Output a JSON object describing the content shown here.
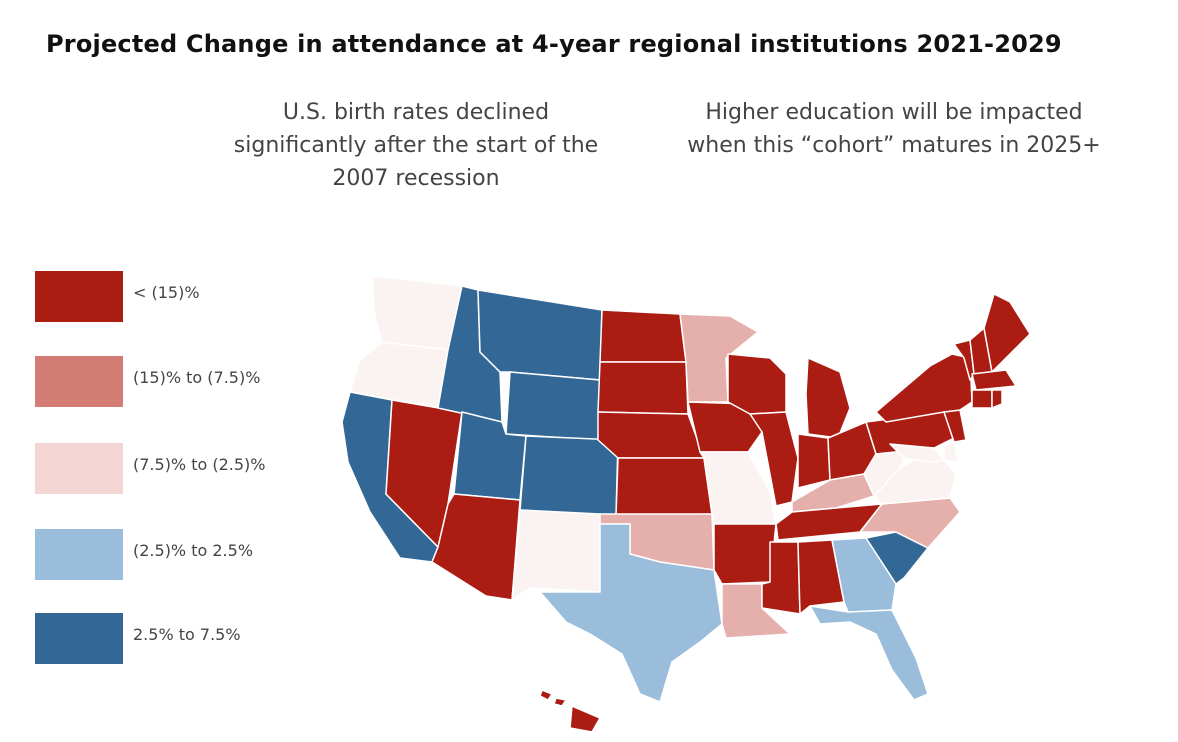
{
  "title": "Projected Change in attendance at 4-year regional institutions 2021-2029",
  "notes": {
    "left": "U.S. birth rates declined significantly after the start of the 2007 recession",
    "right": "Higher education will be impacted when this “cohort” matures in 2025+"
  },
  "legend": [
    {
      "label": "< (15)%",
      "color": "#AB1D13"
    },
    {
      "label": "(15)% to (7.5)%",
      "color": "#D27C74"
    },
    {
      "label": "(7.5)% to (2.5)%",
      "color": "#F3D5D3"
    },
    {
      "label": "(2.5)% to 2.5%",
      "color": "#9ABDDB"
    },
    {
      "label": "2.5% to 7.5%",
      "color": "#336896"
    }
  ],
  "map_data": {
    "colors": {
      "c1": "#AB1D13",
      "c2": "#E5AFAB",
      "c3": "#FAF3F2",
      "c4": "#9ABDDB",
      "c5": "#336896"
    },
    "states": {
      "WA": "c3",
      "OR": "c3",
      "CA": "c5",
      "ID": "c5",
      "NV": "c1",
      "MT": "c5",
      "WY": "c5",
      "UT": "c5",
      "AZ": "c1",
      "CO": "c5",
      "NM": "c3",
      "ND": "c1",
      "SD": "c1",
      "NE": "c1",
      "KS": "c1",
      "OK": "c2",
      "TX": "c4",
      "MN": "c2",
      "IA": "c1",
      "MO": "c3",
      "AR": "c1",
      "LA": "c2",
      "WI": "c1",
      "IL": "c1",
      "MI": "c1",
      "IN": "c1",
      "OH": "c1",
      "KY": "c2",
      "TN": "c1",
      "MS": "c1",
      "AL": "c1",
      "GA": "c4",
      "FL": "c4",
      "SC": "c5",
      "NC": "c2",
      "VA": "c3",
      "WV": "c3",
      "PA": "c1",
      "NY": "c1",
      "VT": "c1",
      "NH": "c1",
      "ME": "c1",
      "MA": "c1",
      "CT": "c1",
      "RI": "c1",
      "NJ": "c1",
      "DE": "c3",
      "MD": "c3",
      "HI": "c1"
    }
  }
}
